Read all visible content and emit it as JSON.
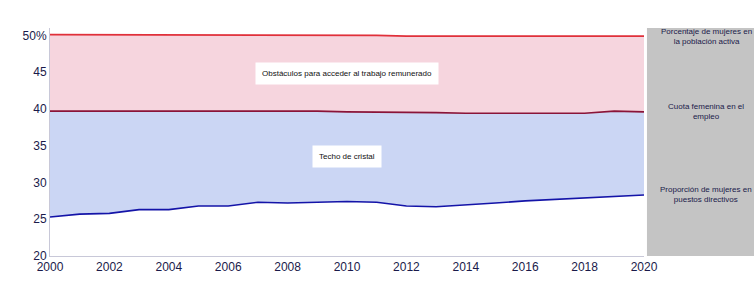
{
  "chart_data": {
    "type": "line",
    "x": [
      2000,
      2001,
      2002,
      2003,
      2004,
      2005,
      2006,
      2007,
      2008,
      2009,
      2010,
      2011,
      2012,
      2013,
      2014,
      2015,
      2016,
      2017,
      2018,
      2019,
      2020
    ],
    "series": [
      {
        "name": "Proporción de mujeres en puestos directivos",
        "color": "#1414a8",
        "values": [
          25.3,
          25.7,
          25.8,
          26.3,
          26.3,
          26.8,
          26.8,
          27.3,
          27.2,
          27.3,
          27.4,
          27.3,
          26.8,
          26.7,
          26.9,
          27.2,
          27.5,
          27.7,
          27.9,
          28.2,
          28.3
        ]
      },
      {
        "name": "Cuota femenina en el empleo",
        "color": "#8a1438",
        "values": [
          39.7,
          39.7,
          39.7,
          39.8,
          39.7,
          39.8,
          39.8,
          39.8,
          39.7,
          39.7,
          39.6,
          39.6,
          39.5,
          39.5,
          39.4,
          39.4,
          39.4,
          39.4,
          39.4,
          39.7,
          39.6
        ]
      },
      {
        "name": "Porcentaje de mujeres en la población activa",
        "color": "#e0303a",
        "values": [
          50.1,
          50.1,
          50.0,
          50.0,
          50.0,
          50.0,
          50.0,
          50.0,
          50.0,
          50.0,
          50.0,
          50.0,
          49.9,
          49.9,
          49.9,
          49.9,
          49.9,
          49.9,
          49.9,
          49.9,
          49.9
        ]
      }
    ],
    "annotations": [
      {
        "text": "Techo de cristal"
      },
      {
        "text": "Obstáculos para acceder al trabajo remunerado"
      }
    ],
    "xlim": [
      2000,
      2020
    ],
    "xticks": [
      2000,
      2002,
      2004,
      2006,
      2008,
      2010,
      2012,
      2014,
      2016,
      2018,
      2020
    ],
    "ylim": [
      20,
      51
    ],
    "yticks": [
      20,
      25,
      30,
      35,
      40,
      45,
      {
        "value": 50,
        "label": "50%"
      }
    ],
    "grid": false
  }
}
